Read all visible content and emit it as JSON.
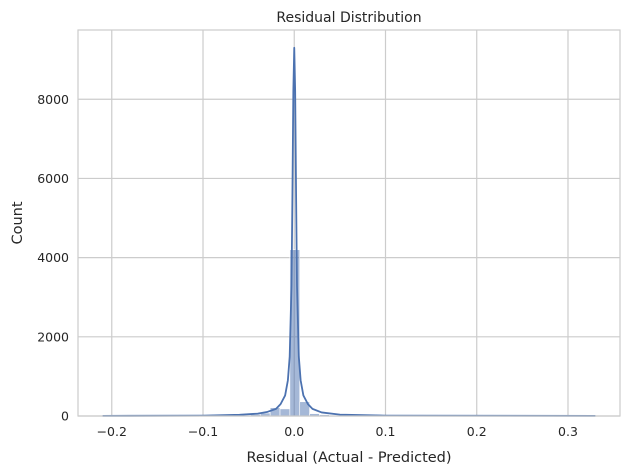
{
  "chart_data": {
    "type": "bar",
    "title": "Residual Distribution",
    "xlabel": "Residual (Actual - Predicted)",
    "ylabel": "Count",
    "xlim": [
      -0.237,
      0.357
    ],
    "ylim": [
      0,
      9750
    ],
    "xticks": [
      -0.2,
      -0.1,
      0.0,
      0.1,
      0.2,
      0.3
    ],
    "xtick_labels": [
      "−0.2",
      "−0.1",
      "0.0",
      "0.1",
      "0.2",
      "0.3"
    ],
    "yticks": [
      0,
      2000,
      4000,
      6000,
      8000
    ],
    "ytick_labels": [
      "0",
      "2000",
      "4000",
      "6000",
      "8000"
    ],
    "grid": true,
    "colors": {
      "bar": "#4c72b0",
      "kde": "#4c72b0",
      "grid": "#cccccc",
      "background": "#ffffff"
    },
    "bin_edges": [
      -0.21,
      -0.1992,
      -0.1884,
      -0.1776,
      -0.1668,
      -0.156,
      -0.1452,
      -0.1344,
      -0.1236,
      -0.1128,
      -0.102,
      -0.0912,
      -0.0804,
      -0.0696,
      -0.0588,
      -0.048,
      -0.0372,
      -0.0264,
      -0.0156,
      -0.0048,
      0.006,
      0.0168,
      0.0276,
      0.0384,
      0.0492,
      0.06,
      0.0708,
      0.0816,
      0.0924,
      0.1032,
      0.114,
      0.1248,
      0.1356,
      0.1464,
      0.1572,
      0.168,
      0.1788,
      0.1896,
      0.2004,
      0.2112,
      0.222,
      0.2328,
      0.2436,
      0.2544,
      0.2652,
      0.276,
      0.2868,
      0.2976,
      0.3084,
      0.3192,
      0.33
    ],
    "counts": [
      3,
      1,
      1,
      1,
      1,
      1,
      2,
      1,
      2,
      2,
      3,
      4,
      6,
      10,
      22,
      40,
      75,
      210,
      180,
      4200,
      360,
      60,
      35,
      22,
      15,
      10,
      6,
      4,
      3,
      2,
      2,
      2,
      1,
      1,
      1,
      1,
      1,
      1,
      1,
      1,
      1,
      1,
      1,
      1,
      1,
      1,
      1,
      1,
      1,
      3
    ],
    "kde": {
      "x": [
        -0.21,
        -0.1,
        -0.06,
        -0.04,
        -0.03,
        -0.02,
        -0.015,
        -0.01,
        -0.007,
        -0.005,
        -0.003,
        -0.002,
        -0.001,
        0.0,
        0.001,
        0.002,
        0.003,
        0.005,
        0.007,
        0.01,
        0.015,
        0.02,
        0.03,
        0.05,
        0.1,
        0.33
      ],
      "y": [
        3,
        10,
        30,
        60,
        100,
        180,
        300,
        520,
        900,
        1500,
        3300,
        5600,
        8200,
        9300,
        8200,
        5600,
        3300,
        1500,
        900,
        520,
        300,
        180,
        90,
        35,
        10,
        3
      ]
    }
  }
}
